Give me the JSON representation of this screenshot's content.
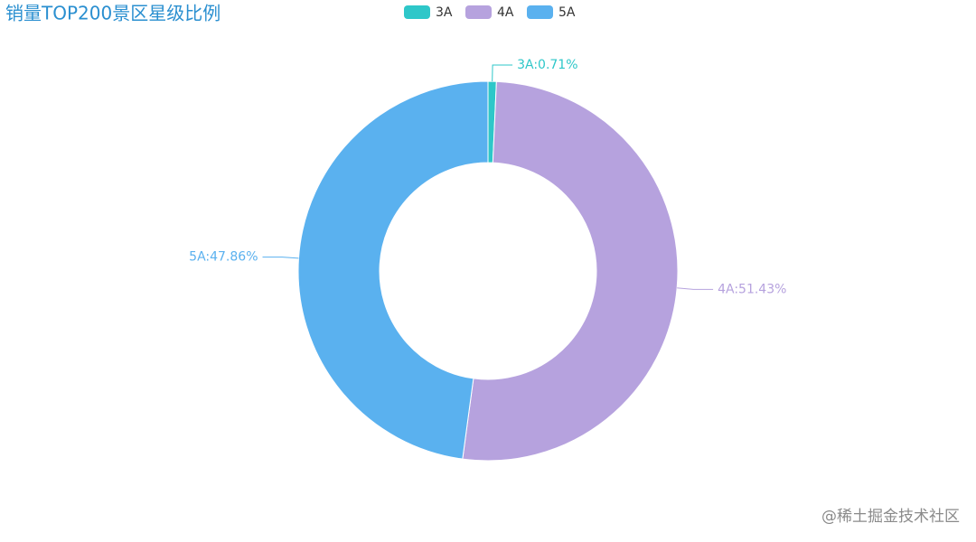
{
  "chart_data": {
    "type": "donut",
    "title": "销量TOP200景区星级比例",
    "categories": [
      "3A",
      "4A",
      "5A"
    ],
    "values": [
      0.71,
      51.43,
      47.86
    ],
    "value_labels": [
      "3A:0.71%",
      "4A:51.43%",
      "5A:47.86%"
    ],
    "colors": [
      "#2ec7c9",
      "#b6a2de",
      "#5ab1ef"
    ]
  },
  "watermark": "@稀土掘金技术社区"
}
